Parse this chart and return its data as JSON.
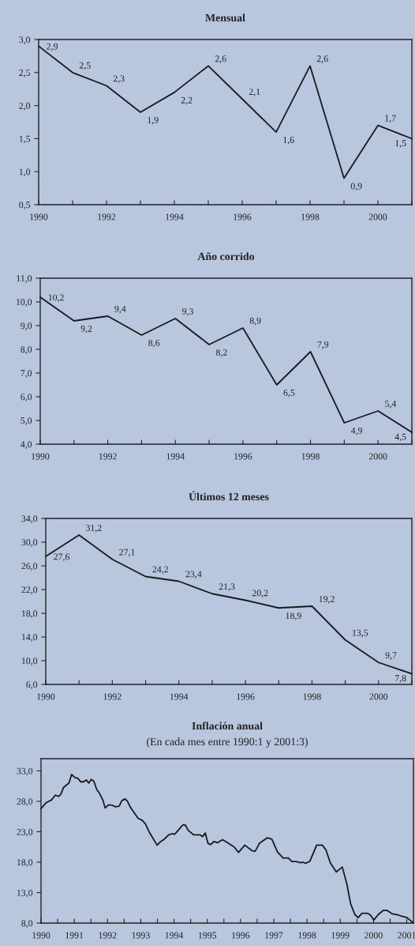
{
  "chart_data": [
    {
      "type": "line",
      "title": "Mensual",
      "x": [
        1990,
        1991,
        1992,
        1993,
        1994,
        1995,
        1996,
        1997,
        1998,
        1999,
        2000,
        2001
      ],
      "series": [
        {
          "color": "#1a1a1a",
          "values": [
            2.9,
            2.5,
            2.3,
            1.9,
            2.2,
            2.6,
            2.1,
            1.6,
            2.6,
            0.9,
            1.7,
            1.5
          ],
          "value_labels": [
            "2,9",
            "2,5",
            "2,3",
            "1,9",
            "2,2",
            "2,6",
            "2,1",
            "1,6",
            "2,6",
            "0,9",
            "1,7",
            "1,5"
          ]
        }
      ],
      "xlim": [
        1990,
        2001
      ],
      "xticks": [
        1990,
        {
          "value": 1991,
          "label": null
        },
        1992,
        {
          "value": 1993,
          "label": null
        },
        1994,
        {
          "value": 1995,
          "label": null
        },
        1996,
        {
          "value": 1997,
          "label": null
        },
        1998,
        {
          "value": 1999,
          "label": null
        },
        2000,
        {
          "value": 2001,
          "label": null
        }
      ],
      "ylim": [
        0.5,
        3.0
      ],
      "yticks": [
        {
          "value": 0.5,
          "label": "0,5"
        },
        {
          "value": 1.0,
          "label": "1,0"
        },
        {
          "value": 1.5,
          "label": "1,5"
        },
        {
          "value": 2.0,
          "label": "2,0"
        },
        {
          "value": 2.5,
          "label": "2,5"
        },
        {
          "value": 3.0,
          "label": "3,0"
        }
      ],
      "grid": false
    },
    {
      "type": "line",
      "title": "Año corrido",
      "x": [
        1990,
        1991,
        1992,
        1993,
        1994,
        1995,
        1996,
        1997,
        1998,
        1999,
        2000,
        2001
      ],
      "series": [
        {
          "color": "#1a1a1a",
          "values": [
            10.2,
            9.2,
            9.4,
            8.6,
            9.3,
            8.2,
            8.9,
            6.5,
            7.9,
            4.9,
            5.4,
            4.5
          ],
          "value_labels": [
            "10,2",
            "9,2",
            "9,4",
            "8,6",
            "9,3",
            "8,2",
            "8,9",
            "6,5",
            "7,9",
            "4,9",
            "5,4",
            "4,5"
          ]
        }
      ],
      "xlim": [
        1990,
        2001
      ],
      "xticks": [
        1990,
        {
          "value": 1991,
          "label": null
        },
        1992,
        {
          "value": 1993,
          "label": null
        },
        1994,
        {
          "value": 1995,
          "label": null
        },
        1996,
        {
          "value": 1997,
          "label": null
        },
        1998,
        {
          "value": 1999,
          "label": null
        },
        2000,
        {
          "value": 2001,
          "label": null
        }
      ],
      "ylim": [
        4.0,
        11.0
      ],
      "yticks": [
        {
          "value": 4,
          "label": "4,0"
        },
        {
          "value": 5,
          "label": "5,0"
        },
        {
          "value": 6,
          "label": "6,0"
        },
        {
          "value": 7,
          "label": "7,0"
        },
        {
          "value": 8,
          "label": "8,0"
        },
        {
          "value": 9,
          "label": "9,0"
        },
        {
          "value": 10,
          "label": "10,0"
        },
        {
          "value": 11,
          "label": "11,0"
        }
      ],
      "grid": false
    },
    {
      "type": "line",
      "title": "Últimos 12 meses",
      "x": [
        1990,
        1991,
        1992,
        1993,
        1994,
        1995,
        1996,
        1997,
        1998,
        1999,
        2000,
        2001
      ],
      "series": [
        {
          "color": "#1a1a1a",
          "values": [
            27.6,
            31.2,
            27.1,
            24.2,
            23.4,
            21.3,
            20.2,
            18.9,
            19.2,
            13.5,
            9.7,
            7.8
          ],
          "value_labels": [
            "27,6",
            "31,2",
            "27,1",
            "24,2",
            "23,4",
            "21,3",
            "20,2",
            "18,9",
            "19,2",
            "13,5",
            "9,7",
            "7,8"
          ]
        }
      ],
      "xlim": [
        1990,
        2001
      ],
      "xticks": [
        1990,
        {
          "value": 1991,
          "label": null
        },
        1992,
        {
          "value": 1993,
          "label": null
        },
        1994,
        {
          "value": 1995,
          "label": null
        },
        1996,
        {
          "value": 1997,
          "label": null
        },
        1998,
        {
          "value": 1999,
          "label": null
        },
        2000,
        {
          "value": 2001,
          "label": null
        }
      ],
      "ylim": [
        6.0,
        34.0
      ],
      "yticks": [
        {
          "value": 6,
          "label": "6,0"
        },
        {
          "value": 10,
          "label": "10,0"
        },
        {
          "value": 14,
          "label": "14,0"
        },
        {
          "value": 18,
          "label": "18,0"
        },
        {
          "value": 22,
          "label": "22,0"
        },
        {
          "value": 26,
          "label": "26,0"
        },
        {
          "value": 30,
          "label": "30,0"
        },
        {
          "value": 34,
          "label": "34,0"
        }
      ],
      "grid": false
    },
    {
      "type": "line",
      "title": "Inflación anual",
      "subtitle": "(En cada mes entre 1990:1 y 2001:3)",
      "series": [
        {
          "color": "#1a1a1a",
          "x": [
            1990.0,
            1990.16,
            1990.31,
            1990.43,
            1990.53,
            1990.6,
            1990.68,
            1990.84,
            1990.92,
            1991.02,
            1991.1,
            1991.2,
            1991.28,
            1991.36,
            1991.44,
            1991.51,
            1991.59,
            1991.67,
            1991.76,
            1991.86,
            1991.93,
            1992.02,
            1992.12,
            1992.24,
            1992.35,
            1992.43,
            1992.53,
            1992.6,
            1992.69,
            1992.78,
            1992.92,
            1993.04,
            1993.14,
            1993.25,
            1993.49,
            1993.58,
            1993.71,
            1993.84,
            1993.95,
            1994.02,
            1994.12,
            1994.26,
            1994.34,
            1994.43,
            1994.59,
            1994.78,
            1994.86,
            1994.94,
            1995.02,
            1995.1,
            1995.2,
            1995.31,
            1995.46,
            1995.61,
            1995.81,
            1995.94,
            1996.13,
            1996.34,
            1996.44,
            1996.57,
            1996.8,
            1996.94,
            1997.11,
            1997.28,
            1997.44,
            1997.54,
            1997.68,
            1997.8,
            1997.88,
            1997.96,
            1998.09,
            1998.29,
            1998.46,
            1998.57,
            1998.7,
            1998.88,
            1999.06,
            1999.2,
            1999.31,
            1999.44,
            1999.54,
            1999.65,
            1999.83,
            1999.91,
            2000.01,
            2000.14,
            2000.3,
            2000.4,
            2000.57,
            2000.69,
            2000.81,
            2001.01,
            2001.2
          ],
          "values": [
            26.8,
            27.8,
            28.2,
            29.0,
            28.8,
            29.2,
            30.3,
            31.0,
            32.4,
            31.9,
            31.8,
            31.2,
            31.2,
            31.5,
            31.0,
            31.6,
            31.3,
            30.0,
            29.3,
            28.2,
            26.9,
            27.4,
            27.4,
            27.1,
            27.2,
            28.1,
            28.4,
            28.0,
            27.0,
            26.3,
            25.2,
            24.9,
            24.3,
            23.0,
            20.8,
            21.3,
            21.8,
            22.5,
            22.7,
            22.6,
            23.2,
            24.1,
            24.1,
            23.2,
            22.5,
            22.5,
            22.2,
            22.8,
            21.1,
            20.9,
            21.4,
            21.2,
            21.7,
            21.2,
            20.5,
            19.6,
            20.8,
            19.9,
            19.8,
            21.1,
            22.0,
            21.8,
            19.7,
            18.7,
            18.7,
            18.1,
            18.1,
            17.9,
            18.0,
            17.8,
            18.2,
            20.8,
            20.8,
            20.0,
            17.9,
            16.4,
            17.2,
            14.4,
            11.2,
            9.4,
            8.9,
            9.6,
            9.6,
            9.3,
            8.5,
            9.4,
            10.1,
            10.1,
            9.5,
            9.4,
            9.2,
            8.9,
            8.0
          ]
        }
      ],
      "xlim": [
        1990,
        2001.2
      ],
      "xticks": [
        1990,
        {
          "value": 1990.5,
          "label": null
        },
        1991,
        {
          "value": 1991.5,
          "label": null
        },
        1992,
        {
          "value": 1992.5,
          "label": null
        },
        1993,
        {
          "value": 1993.5,
          "label": null
        },
        1994,
        {
          "value": 1994.5,
          "label": null
        },
        1995,
        {
          "value": 1995.5,
          "label": null
        },
        1996,
        {
          "value": 1996.5,
          "label": null
        },
        1997,
        {
          "value": 1997.5,
          "label": null
        },
        1998,
        {
          "value": 1998.5,
          "label": null
        },
        1999,
        {
          "value": 1999.5,
          "label": null
        },
        2000,
        {
          "value": 2000.5,
          "label": null
        },
        2001
      ],
      "ylim": [
        8.0,
        35.0
      ],
      "yticks": [
        {
          "value": 8,
          "label": "8,0"
        },
        {
          "value": 13,
          "label": "13,0"
        },
        {
          "value": 18,
          "label": "18,0"
        },
        {
          "value": 23,
          "label": "23,0"
        },
        {
          "value": 28,
          "label": "28,0"
        },
        {
          "value": 33,
          "label": "33,0"
        }
      ],
      "grid": false
    }
  ]
}
